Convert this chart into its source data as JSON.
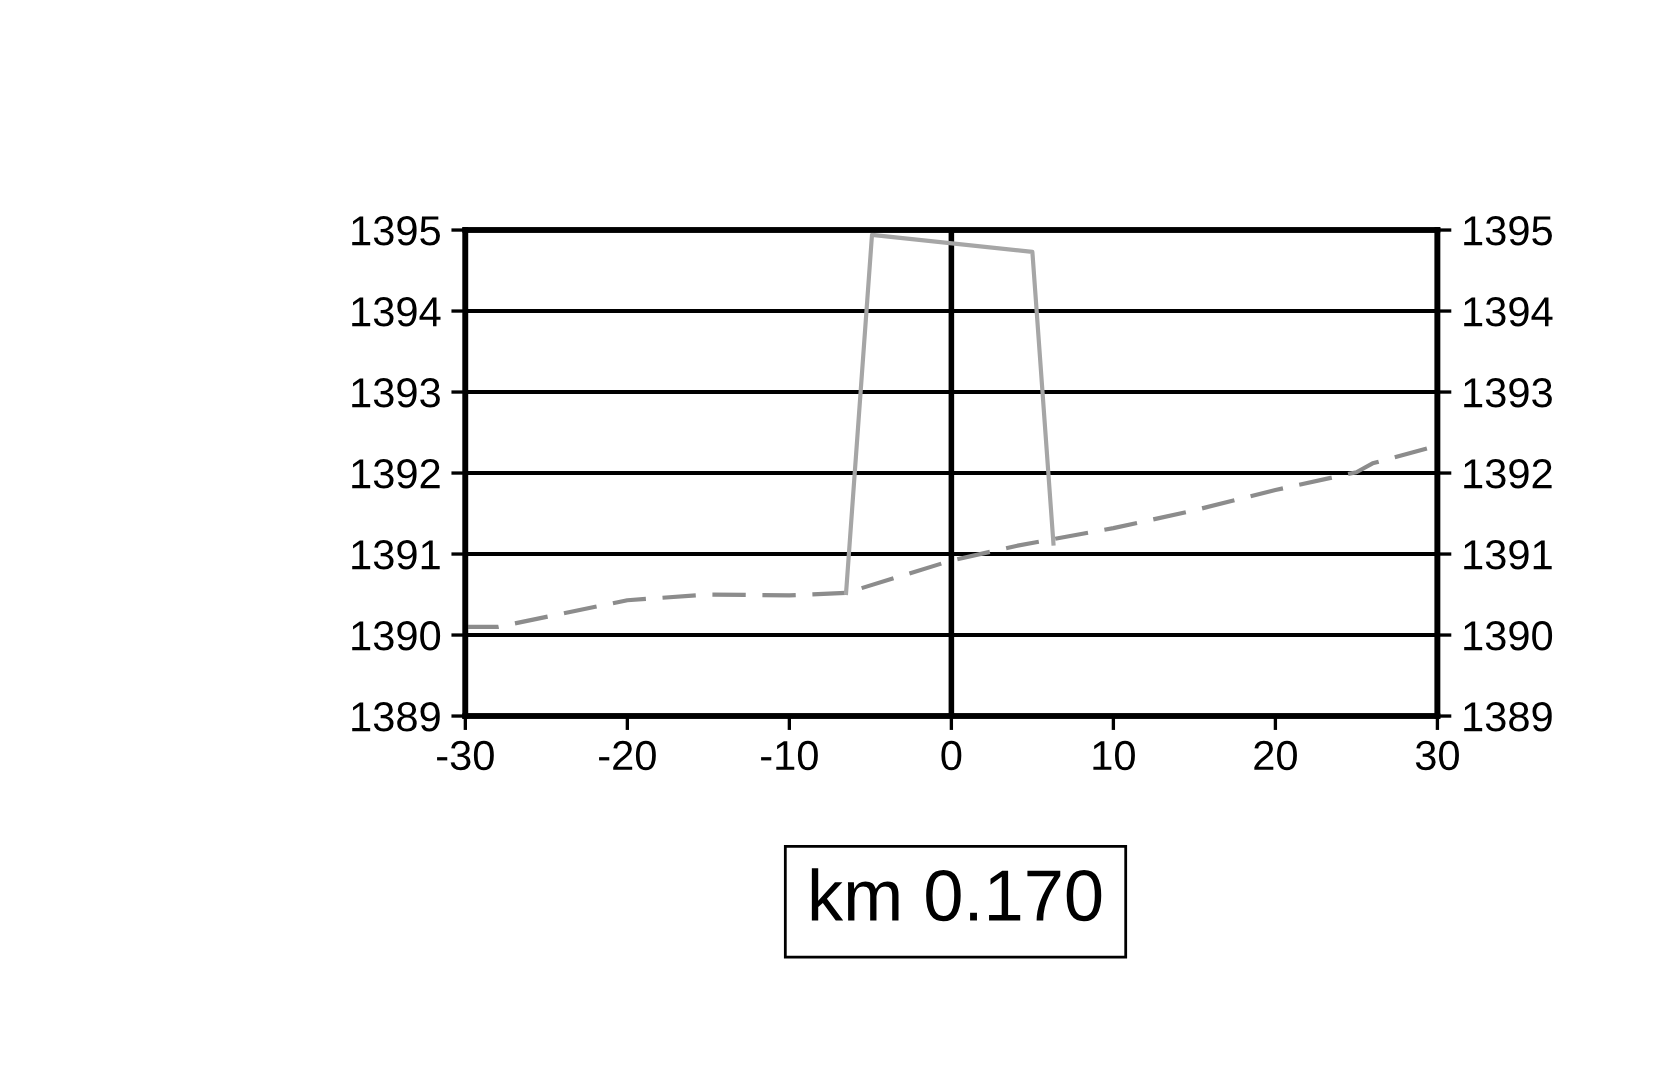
{
  "chart_data": {
    "type": "line",
    "series": [
      {
        "color": "#8c8c8c",
        "line_style": "dashed",
        "x": [
          -30,
          -28,
          -20,
          -15,
          -10,
          -6.5,
          0,
          4,
          10,
          15,
          20,
          25,
          26,
          30
        ],
        "values": [
          1390.1,
          1390.1,
          1390.43,
          1390.5,
          1390.49,
          1390.52,
          1390.92,
          1391.1,
          1391.32,
          1391.54,
          1391.79,
          1392.01,
          1392.12,
          1392.34
        ]
      },
      {
        "color": "#a6a6a6",
        "line_style": "solid",
        "x": [
          -6.5,
          -4.9,
          5.0,
          6.3
        ],
        "values": [
          1390.52,
          1394.94,
          1394.73,
          1391.13
        ]
      }
    ],
    "xlim": [
      -30,
      30
    ],
    "xticks": [
      -30,
      -20,
      -10,
      0,
      10,
      20,
      30
    ],
    "ylim": [
      1389,
      1395
    ],
    "yticks": [
      1389,
      1390,
      1391,
      1392,
      1393,
      1394,
      1395
    ],
    "y2lim": [
      1389,
      1395
    ],
    "y2ticks": [
      1389,
      1390,
      1391,
      1392,
      1393,
      1394,
      1395
    ],
    "grid": "y",
    "marker": "none",
    "ref_lines": [
      {
        "axis": "x",
        "value": 0,
        "color": "#000000",
        "line_style": "solid"
      }
    ],
    "annotations": [
      "km 0.170"
    ]
  }
}
